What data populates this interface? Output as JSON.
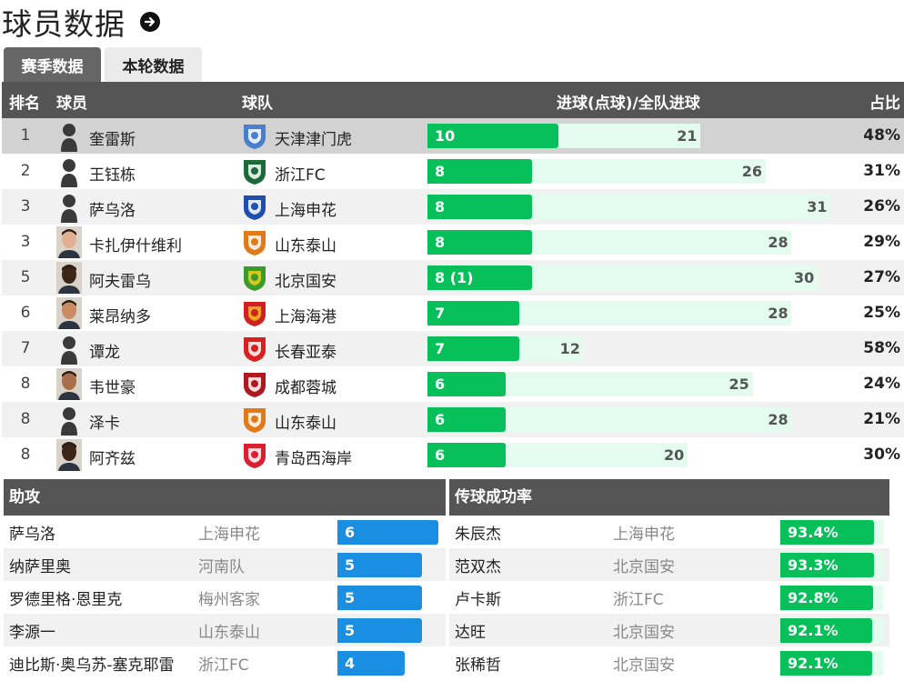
{
  "page": {
    "title": "球员数据"
  },
  "tabs": [
    {
      "label": "赛季数据",
      "active": true
    },
    {
      "label": "本轮数据",
      "active": false
    }
  ],
  "main_table": {
    "headers": {
      "rank": "排名",
      "player": "球员",
      "team": "球队",
      "goals": "进球(点球)/全队进球",
      "ratio": "占比"
    },
    "rows": [
      {
        "rank": "1",
        "player": "奎雷斯",
        "team": "天津津门虎",
        "goals_label": "10",
        "goals": 10,
        "team_goals": "21",
        "ratio": "48%",
        "avatar": "silhouette",
        "crest": "tianjin"
      },
      {
        "rank": "2",
        "player": "王钰栋",
        "team": "浙江FC",
        "goals_label": "8",
        "goals": 8,
        "team_goals": "26",
        "ratio": "31%",
        "avatar": "silhouette",
        "crest": "zhejiang"
      },
      {
        "rank": "3",
        "player": "萨乌洛",
        "team": "上海申花",
        "goals_label": "8",
        "goals": 8,
        "team_goals": "31",
        "ratio": "26%",
        "avatar": "silhouette",
        "crest": "shenhua"
      },
      {
        "rank": "3",
        "player": "卡扎伊什维利",
        "team": "山东泰山",
        "goals_label": "8",
        "goals": 8,
        "team_goals": "28",
        "ratio": "29%",
        "avatar": "photo",
        "crest": "taishan"
      },
      {
        "rank": "5",
        "player": "阿夫雷乌",
        "team": "北京国安",
        "goals_label": "8 (1)",
        "goals": 8,
        "team_goals": "30",
        "ratio": "27%",
        "avatar": "photo",
        "crest": "guoan"
      },
      {
        "rank": "6",
        "player": "莱昂纳多",
        "team": "上海海港",
        "goals_label": "7",
        "goals": 7,
        "team_goals": "28",
        "ratio": "25%",
        "avatar": "photo",
        "crest": "haigang"
      },
      {
        "rank": "7",
        "player": "谭龙",
        "team": "长春亚泰",
        "goals_label": "7",
        "goals": 7,
        "team_goals": "12",
        "ratio": "58%",
        "avatar": "silhouette",
        "crest": "yatai"
      },
      {
        "rank": "8",
        "player": "韦世豪",
        "team": "成都蓉城",
        "goals_label": "6",
        "goals": 6,
        "team_goals": "25",
        "ratio": "24%",
        "avatar": "photo",
        "crest": "chengdu"
      },
      {
        "rank": "8",
        "player": "泽卡",
        "team": "山东泰山",
        "goals_label": "6",
        "goals": 6,
        "team_goals": "28",
        "ratio": "21%",
        "avatar": "silhouette",
        "crest": "taishan"
      },
      {
        "rank": "8",
        "player": "阿齐兹",
        "team": "青岛西海岸",
        "goals_label": "6",
        "goals": 6,
        "team_goals": "20",
        "ratio": "30%",
        "avatar": "photo",
        "crest": "qingdao"
      }
    ]
  },
  "assists": {
    "header": "助攻",
    "rows": [
      {
        "player": "萨乌洛",
        "team": "上海申花",
        "value": "6",
        "num": 6
      },
      {
        "player": "纳萨里奥",
        "team": "河南队",
        "value": "5",
        "num": 5
      },
      {
        "player": "罗德里格·恩里克",
        "team": "梅州客家",
        "value": "5",
        "num": 5
      },
      {
        "player": "李源一",
        "team": "山东泰山",
        "value": "5",
        "num": 5
      },
      {
        "player": "迪比斯·奥乌苏-塞克耶雷",
        "team": "浙江FC",
        "value": "4",
        "num": 4
      }
    ]
  },
  "passing": {
    "header": "传球成功率",
    "rows": [
      {
        "player": "朱辰杰",
        "team": "上海申花",
        "value": "93.4%",
        "num": 93.4
      },
      {
        "player": "范双杰",
        "team": "北京国安",
        "value": "93.3%",
        "num": 93.3
      },
      {
        "player": "卢卡斯",
        "team": "浙江FC",
        "value": "92.8%",
        "num": 92.8
      },
      {
        "player": "达旺",
        "team": "北京国安",
        "value": "92.1%",
        "num": 92.1
      },
      {
        "player": "张稀哲",
        "team": "北京国安",
        "value": "92.1%",
        "num": 92.1
      }
    ]
  },
  "colors": {
    "header_bg": "#555555",
    "goal_bar": "#08c05a",
    "goal_bar_bg": "#e4fbef",
    "assist_bar": "#1a8ee0",
    "highlight_row": "#d2d2d2"
  }
}
